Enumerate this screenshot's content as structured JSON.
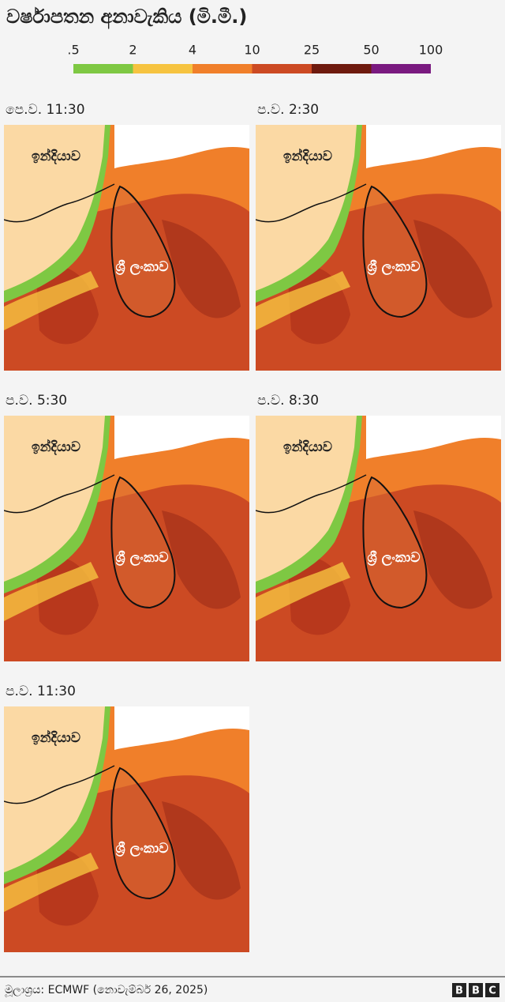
{
  "title": "වර්ෂාපතන අනාවැකිය (මි.මී.)",
  "legend": {
    "labels": [
      ".5",
      "2",
      "4",
      "10",
      "25",
      "50",
      "100"
    ],
    "colors": [
      "#7ec843",
      "#f6c340",
      "#f07f2a",
      "#cc4a23",
      "#6e1a0e",
      "#7a1a80"
    ]
  },
  "panels": [
    {
      "time": "පෙ.ව. 11:30",
      "india": "ඉන්දියාව",
      "sri_lanka": "ශ්‍රී ලංකාව"
    },
    {
      "time": "ප.ව. 2:30",
      "india": "ඉන්දියාව",
      "sri_lanka": "ශ්‍රී ලංකාව"
    },
    {
      "time": "ප.ව. 5:30",
      "india": "ඉන්දියාව",
      "sri_lanka": "ශ්‍රී ලංකාව"
    },
    {
      "time": "ප.ව. 8:30",
      "india": "ඉන්දියාව",
      "sri_lanka": "ශ්‍රී ලංකාව"
    },
    {
      "time": "ප.ව. 11:30",
      "india": "ඉන්දියාව",
      "sri_lanka": "ශ්‍රී ලංකාව"
    }
  ],
  "footer": {
    "source": "මූලාශ්‍රය: ECMWF (නොවැම්බර් 26, 2025)",
    "logo": [
      "B",
      "B",
      "C"
    ]
  }
}
